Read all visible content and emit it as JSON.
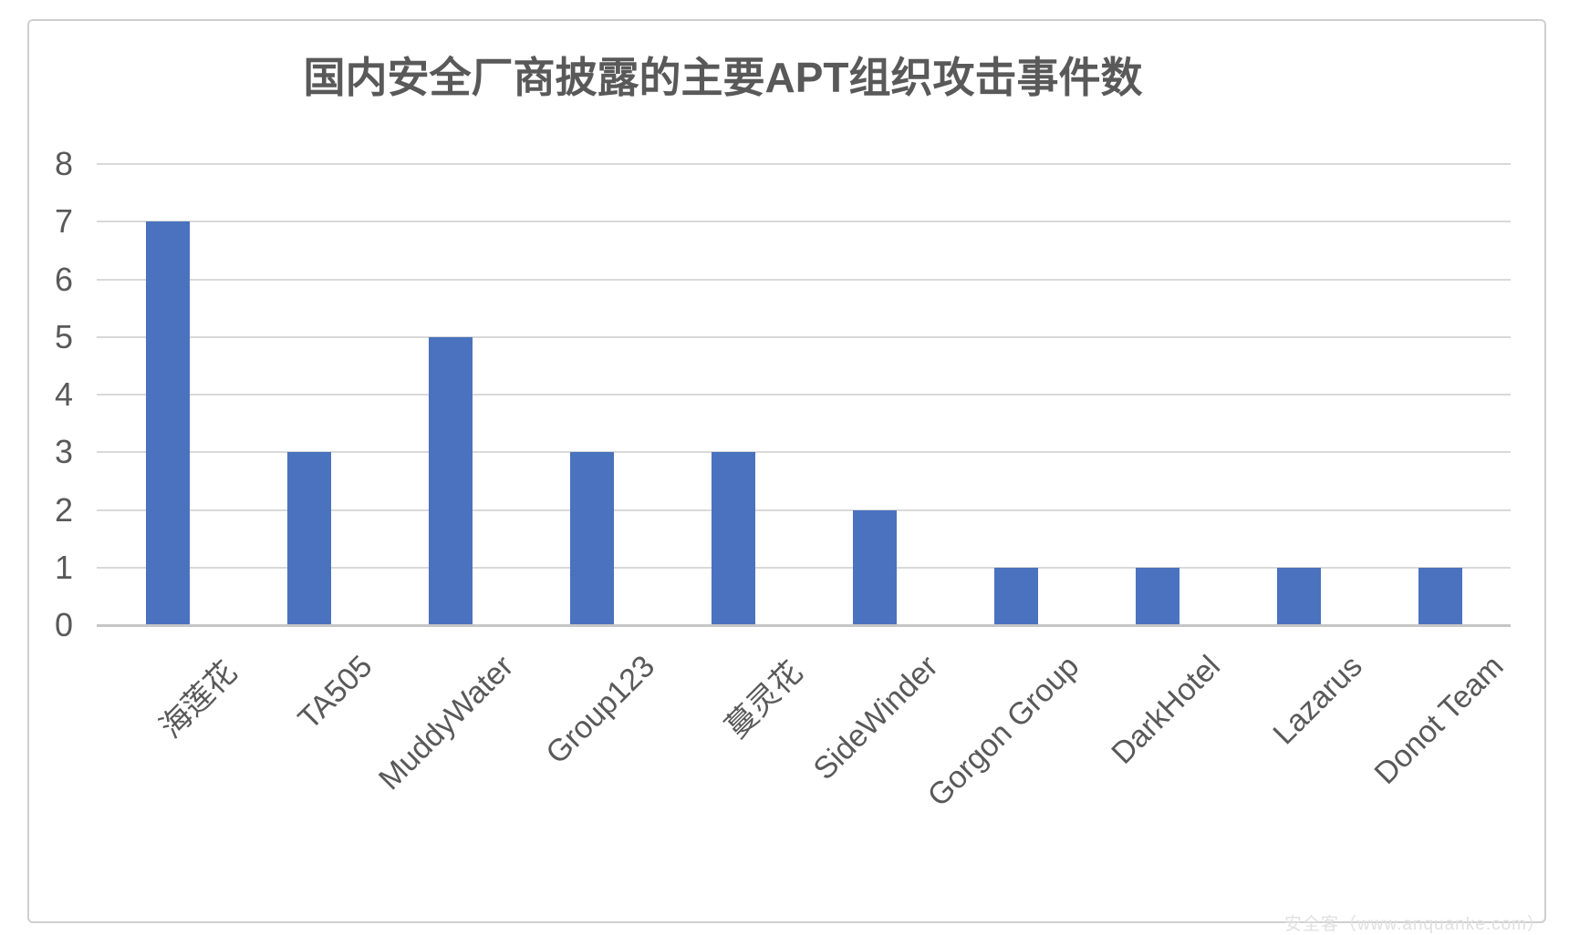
{
  "title": "国内安全厂商披露的主要APT组织攻击事件数",
  "watermark": "安全客（www.anquanke.com）",
  "chart_data": {
    "type": "bar",
    "title": "国内安全厂商披露的主要APT组织攻击事件数",
    "categories": [
      "海莲花",
      "TA505",
      "MuddyWater",
      "Group123",
      "蔓灵花",
      "SideWinder",
      "Gorgon Group",
      "DarkHotel",
      "Lazarus",
      "Donot Team"
    ],
    "values": [
      7,
      3,
      5,
      3,
      3,
      2,
      1,
      1,
      1,
      1
    ],
    "xlabel": "",
    "ylabel": "",
    "ylim": [
      0,
      8
    ],
    "yticks": [
      0,
      1,
      2,
      3,
      4,
      5,
      6,
      7,
      8
    ],
    "grid": true,
    "legend": "none",
    "bar_color": "#4a72be",
    "gridline_color": "#d9d9d9",
    "axis_line_color": "#c6c6c6",
    "text_color": "#595959",
    "category_label_rotation_deg": -45
  }
}
